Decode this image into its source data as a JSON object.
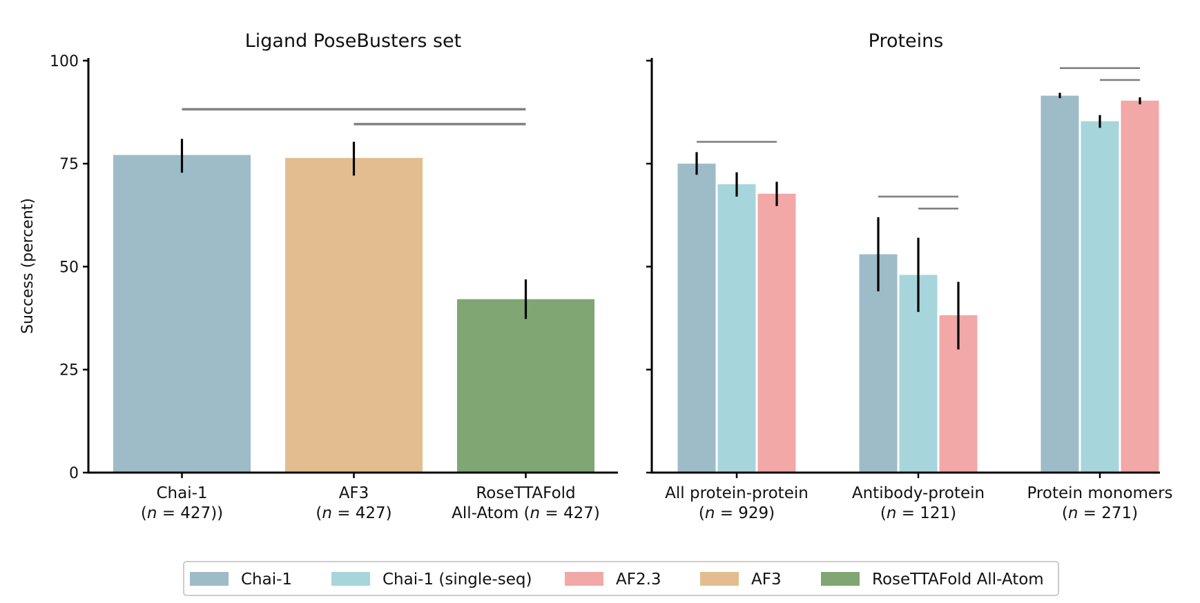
{
  "chart_data": [
    {
      "type": "bar",
      "title": "Ligand PoseBusters set",
      "ylabel": "Success (percent)",
      "xlabel": "",
      "ylim": [
        0,
        103
      ],
      "yticks": [
        0,
        25,
        50,
        75,
        100
      ],
      "categories": [
        {
          "line1": "Chai-1",
          "line2_pre": "(",
          "n_symbol": "n",
          "line2_post": " = 427))"
        },
        {
          "line1": "AF3",
          "line2_pre": "(",
          "n_symbol": "n",
          "line2_post": " = 427)"
        },
        {
          "line1": "RoseTTAFold",
          "line2_pre": "All-Atom (",
          "n_symbol": "n",
          "line2_post": " = 427)"
        }
      ],
      "series": [
        {
          "name": "Chai-1",
          "values": [
            77.1,
            null,
            null
          ],
          "err_low": [
            72.8,
            null,
            null
          ],
          "err_high": [
            81.0,
            null,
            null
          ]
        },
        {
          "name": "AF3",
          "values": [
            null,
            76.4,
            null
          ],
          "err_low": [
            null,
            72.1,
            null
          ],
          "err_high": [
            null,
            80.3,
            null
          ]
        },
        {
          "name": "RoseTTAFold All-Atom",
          "values": [
            null,
            null,
            42.1
          ],
          "err_low": [
            null,
            null,
            37.3
          ],
          "err_high": [
            null,
            null,
            46.9
          ]
        }
      ],
      "significance_brackets": [
        {
          "from_category": 0,
          "to_category": 2,
          "y": 88.2
        },
        {
          "from_category": 1,
          "to_category": 2,
          "y": 84.6
        }
      ]
    },
    {
      "type": "bar",
      "title": "Proteins",
      "ylabel": "",
      "xlabel": "",
      "ylim": [
        0,
        103
      ],
      "yticks": [
        0,
        25,
        50,
        75,
        100
      ],
      "categories": [
        {
          "line1": "All protein-protein",
          "line2_pre": "(",
          "n_symbol": "n",
          "line2_post": " = 929)"
        },
        {
          "line1": "Antibody-protein",
          "line2_pre": "(",
          "n_symbol": "n",
          "line2_post": " = 121)"
        },
        {
          "line1": "Protein monomers",
          "line2_pre": "(",
          "n_symbol": "n",
          "line2_post": " = 271)"
        }
      ],
      "series": [
        {
          "name": "Chai-1",
          "values": [
            75.0,
            53.0,
            91.5
          ],
          "err_low": [
            72.3,
            44.0,
            90.9
          ],
          "err_high": [
            77.8,
            62.0,
            92.2
          ]
        },
        {
          "name": "Chai-1 (single-seq)",
          "values": [
            70.0,
            48.0,
            85.3
          ],
          "err_low": [
            67.0,
            39.0,
            83.7
          ],
          "err_high": [
            72.9,
            57.0,
            86.8
          ]
        },
        {
          "name": "AF2.3",
          "values": [
            67.7,
            38.2,
            90.3
          ],
          "err_low": [
            64.7,
            29.9,
            89.4
          ],
          "err_high": [
            70.6,
            46.3,
            91.1
          ]
        }
      ],
      "significance_brackets": [
        {
          "from_series": 0,
          "to_series": 2,
          "category": 0,
          "y": 80.3
        },
        {
          "from_series": 0,
          "to_series": 2,
          "category": 1,
          "y": 67.0
        },
        {
          "from_series": 1,
          "to_series": 2,
          "category": 1,
          "y": 64.1
        },
        {
          "from_series": 0,
          "to_series": 2,
          "category": 2,
          "y": 98.2
        },
        {
          "from_series": 1,
          "to_series": 2,
          "category": 2,
          "y": 95.3
        }
      ]
    }
  ],
  "colors": {
    "Chai-1": "#9ebbc8",
    "Chai-1 (single-seq)": "#a7d5dc",
    "AF2.3": "#f1a8a7",
    "AF3": "#e3bd8f",
    "RoseTTAFold All-Atom": "#80a673",
    "bracket": "#808080",
    "errorbar": "#000000",
    "axis": "#000000"
  },
  "legend": {
    "position": "bottom-center",
    "entries": [
      "Chai-1",
      "Chai-1 (single-seq)",
      "AF2.3",
      "AF3",
      "RoseTTAFold All-Atom"
    ]
  }
}
